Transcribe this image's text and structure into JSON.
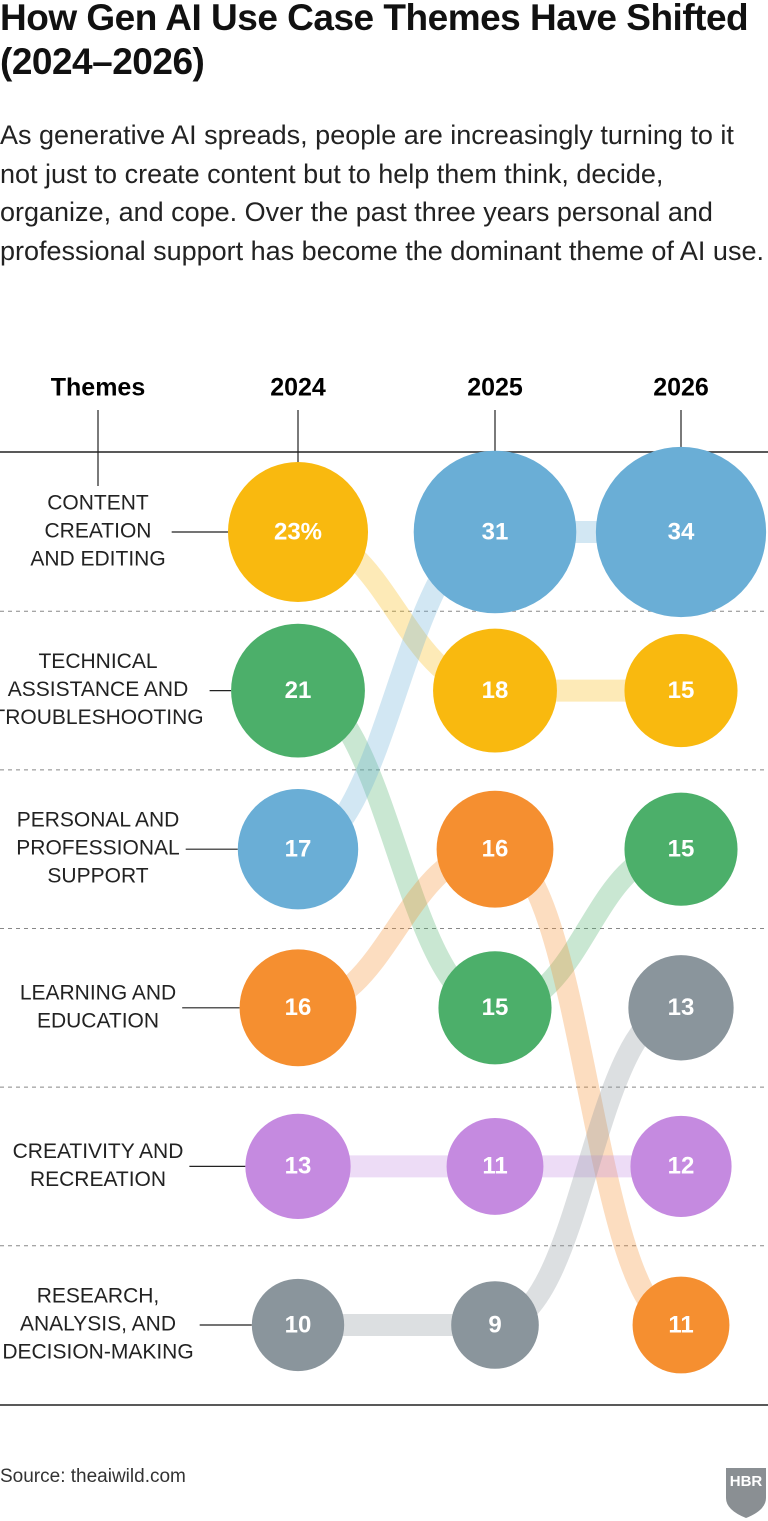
{
  "chart_data": {
    "type": "bump-bubble",
    "title": "How Gen AI Use Case Themes Have Shifted (2024–2026)",
    "subtitle": "As generative AI spreads, people are increasingly turning to it not just to create content but to help them think, decide, organize, and cope. Over the past three years personal and professional support has become the dominant theme of AI use.",
    "category_header": "Themes",
    "x": [
      "2024",
      "2025",
      "2026"
    ],
    "categories": [
      [
        "CONTENT",
        "CREATION",
        "AND EDITING"
      ],
      [
        "TECHNICAL",
        "ASSISTANCE AND",
        "TROUBLESHOOTING"
      ],
      [
        "PERSONAL AND",
        "PROFESSIONAL",
        "SUPPORT"
      ],
      [
        "LEARNING AND",
        "EDUCATION"
      ],
      [
        "CREATIVITY AND",
        "RECREATION"
      ],
      [
        "RESEARCH,",
        "ANALYSIS, AND",
        "DECISION-MAKING"
      ]
    ],
    "series": [
      {
        "color": "#f9b90f",
        "values": [
          23,
          18,
          15
        ],
        "value_labels": [
          "23%",
          "18",
          "15"
        ]
      },
      {
        "color": "#4caf6a",
        "values": [
          21,
          15,
          15
        ]
      },
      {
        "color": "#6aaed6",
        "values": [
          17,
          31,
          34
        ]
      },
      {
        "color": "#f58f30",
        "values": [
          16,
          16,
          11
        ]
      },
      {
        "color": "#c58ae0",
        "values": [
          13,
          11,
          12
        ]
      },
      {
        "color": "#8a959c",
        "values": [
          10,
          9,
          13
        ]
      }
    ],
    "source": "Source: theaiwild.com",
    "logo": "HBR"
  }
}
